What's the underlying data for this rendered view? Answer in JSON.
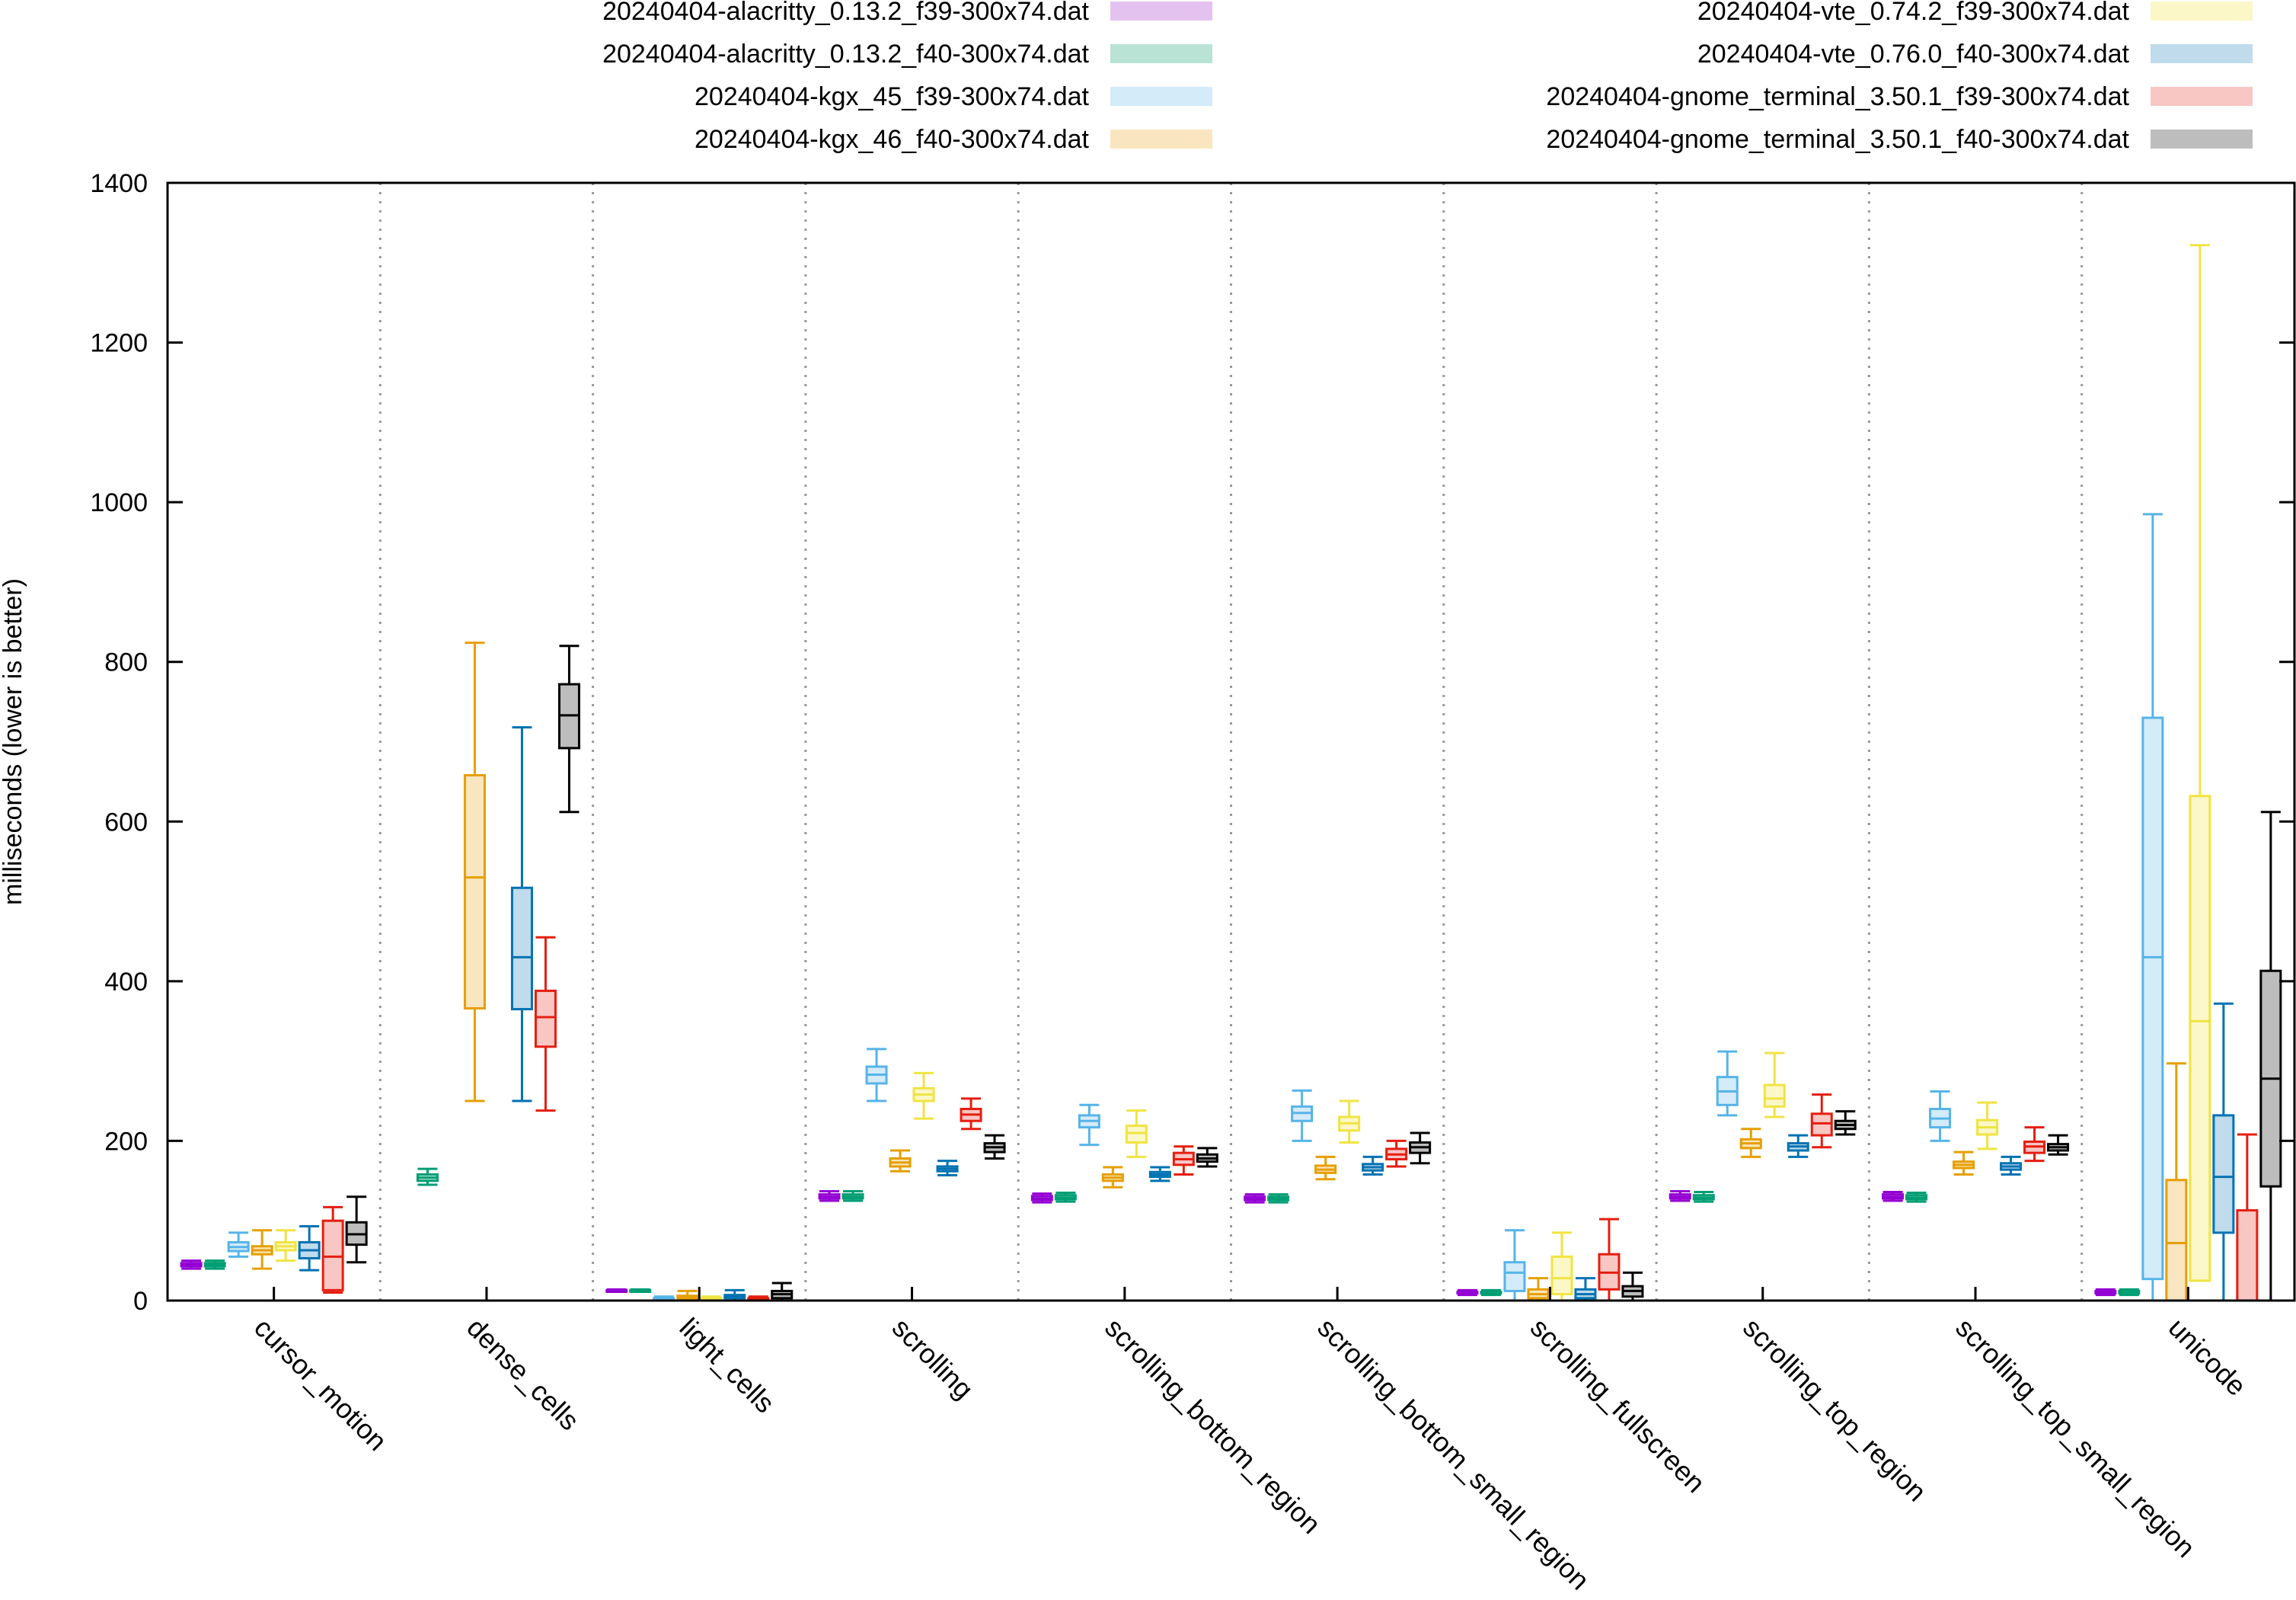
{
  "chart_data": {
    "type": "boxplot",
    "title": "",
    "xlabel": "",
    "ylabel": "milliseconds (lower is better)",
    "ylim": [
      0,
      1400
    ],
    "yticks": [
      0,
      200,
      400,
      600,
      800,
      1000,
      1200,
      1400
    ],
    "categories": [
      "cursor_motion",
      "dense_cells",
      "light_cells",
      "scrolling",
      "scrolling_bottom_region",
      "scrolling_bottom_small_region",
      "scrolling_fullscreen",
      "scrolling_top_region",
      "scrolling_top_small_region",
      "unicode"
    ],
    "legend_position": "top",
    "series": [
      {
        "name": "20240404-alacritty_0.13.2_f39-300x74.dat",
        "stroke": "#9400d3",
        "fill": "#e4c2f0",
        "boxes": [
          [
            40,
            43,
            45,
            47,
            50
          ],
          null,
          [
            11,
            12,
            12,
            13,
            14
          ],
          [
            125,
            128,
            130,
            133,
            137
          ],
          [
            123,
            126,
            128,
            131,
            134
          ],
          [
            123,
            126,
            128,
            130,
            133
          ],
          [
            7,
            9,
            10,
            11,
            13
          ],
          [
            125,
            128,
            130,
            133,
            137
          ],
          [
            125,
            128,
            130,
            133,
            136
          ],
          [
            7,
            9,
            10,
            12,
            14
          ]
        ]
      },
      {
        "name": "20240404-alacritty_0.13.2_f40-300x74.dat",
        "stroke": "#009e73",
        "fill": "#b9e3d5",
        "boxes": [
          [
            40,
            43,
            45,
            47,
            50
          ],
          [
            145,
            150,
            154,
            158,
            165
          ],
          [
            11,
            12,
            12,
            13,
            14
          ],
          [
            125,
            128,
            130,
            133,
            137
          ],
          [
            124,
            127,
            129,
            132,
            135
          ],
          [
            123,
            126,
            128,
            130,
            133
          ],
          [
            7,
            9,
            10,
            11,
            13
          ],
          [
            124,
            127,
            129,
            132,
            136
          ],
          [
            124,
            127,
            129,
            132,
            135
          ],
          [
            7,
            9,
            10,
            12,
            14
          ]
        ]
      },
      {
        "name": "20240404-kgx_45_f39-300x74.dat",
        "stroke": "#56b4e9",
        "fill": "#d4ebf9",
        "boxes": [
          [
            55,
            62,
            67,
            73,
            85
          ],
          null,
          [
            0,
            1,
            2,
            3,
            5
          ],
          [
            250,
            272,
            283,
            293,
            315
          ],
          [
            195,
            217,
            225,
            232,
            245
          ],
          [
            200,
            225,
            235,
            243,
            263
          ],
          [
            0,
            12,
            35,
            48,
            88
          ],
          [
            232,
            245,
            262,
            280,
            312
          ],
          [
            200,
            217,
            228,
            240,
            262
          ],
          [
            0,
            27,
            430,
            730,
            985
          ]
        ]
      },
      {
        "name": "20240404-kgx_46_f40-300x74.dat",
        "stroke": "#e69f00",
        "fill": "#f9e5bf",
        "boxes": [
          [
            40,
            58,
            63,
            68,
            88
          ],
          [
            250,
            366,
            530,
            658,
            824
          ],
          [
            0,
            2,
            4,
            6,
            12
          ],
          [
            162,
            168,
            173,
            178,
            188
          ],
          [
            142,
            150,
            154,
            158,
            167
          ],
          [
            152,
            160,
            164,
            169,
            180
          ],
          [
            0,
            3,
            8,
            14,
            28
          ],
          [
            180,
            191,
            197,
            202,
            215
          ],
          [
            158,
            166,
            170,
            174,
            186
          ],
          [
            0,
            0,
            72,
            151,
            297
          ]
        ]
      },
      {
        "name": "20240404-vte_0.74.2_f39-300x74.dat",
        "stroke": "#f0e442",
        "fill": "#fbf7c6",
        "boxes": [
          [
            50,
            63,
            68,
            73,
            88
          ],
          null,
          [
            0,
            1,
            2,
            3,
            5
          ],
          [
            228,
            250,
            258,
            266,
            285
          ],
          [
            180,
            198,
            210,
            219,
            238
          ],
          [
            198,
            213,
            222,
            230,
            250
          ],
          [
            0,
            8,
            28,
            55,
            85
          ],
          [
            230,
            243,
            253,
            270,
            310
          ],
          [
            190,
            208,
            217,
            226,
            248
          ],
          [
            25,
            25,
            350,
            632,
            1322
          ]
        ]
      },
      {
        "name": "20240404-vte_0.76.0_f40-300x74.dat",
        "stroke": "#0072b2",
        "fill": "#bfdbec",
        "boxes": [
          [
            38,
            53,
            63,
            73,
            93
          ],
          [
            250,
            365,
            430,
            517,
            718
          ],
          [
            0,
            3,
            5,
            7,
            13
          ],
          [
            157,
            162,
            165,
            168,
            175
          ],
          [
            150,
            155,
            158,
            161,
            167
          ],
          [
            158,
            163,
            167,
            171,
            180
          ],
          [
            0,
            3,
            8,
            14,
            28
          ],
          [
            180,
            188,
            193,
            197,
            207
          ],
          [
            158,
            164,
            168,
            172,
            180
          ],
          [
            0,
            85,
            155,
            232,
            372
          ]
        ]
      },
      {
        "name": "20240404-gnome_terminal_3.50.1_f39-300x74.dat",
        "stroke": "#e51e10",
        "fill": "#f8c6c3",
        "boxes": [
          [
            10,
            13,
            55,
            100,
            117
          ],
          [
            238,
            318,
            355,
            388,
            455
          ],
          [
            0,
            1,
            2,
            3,
            5
          ],
          [
            215,
            225,
            233,
            240,
            253
          ],
          [
            158,
            170,
            177,
            185,
            193
          ],
          [
            168,
            177,
            183,
            190,
            200
          ],
          [
            0,
            14,
            35,
            58,
            102
          ],
          [
            192,
            207,
            222,
            234,
            258
          ],
          [
            175,
            185,
            193,
            199,
            217
          ],
          [
            0,
            0,
            0,
            113,
            208
          ]
        ]
      },
      {
        "name": "20240404-gnome_terminal_3.50.1_f40-300x74.dat",
        "stroke": "#000000",
        "fill": "#bdbdbd",
        "boxes": [
          [
            48,
            70,
            83,
            98,
            130
          ],
          [
            612,
            692,
            733,
            772,
            820
          ],
          [
            0,
            3,
            8,
            12,
            22
          ],
          [
            178,
            186,
            192,
            197,
            207
          ],
          [
            168,
            174,
            178,
            183,
            191
          ],
          [
            172,
            185,
            192,
            198,
            210
          ],
          [
            0,
            5,
            12,
            18,
            35
          ],
          [
            208,
            215,
            220,
            225,
            237
          ],
          [
            183,
            188,
            192,
            196,
            207
          ],
          [
            0,
            143,
            278,
            413,
            612
          ]
        ]
      }
    ]
  }
}
